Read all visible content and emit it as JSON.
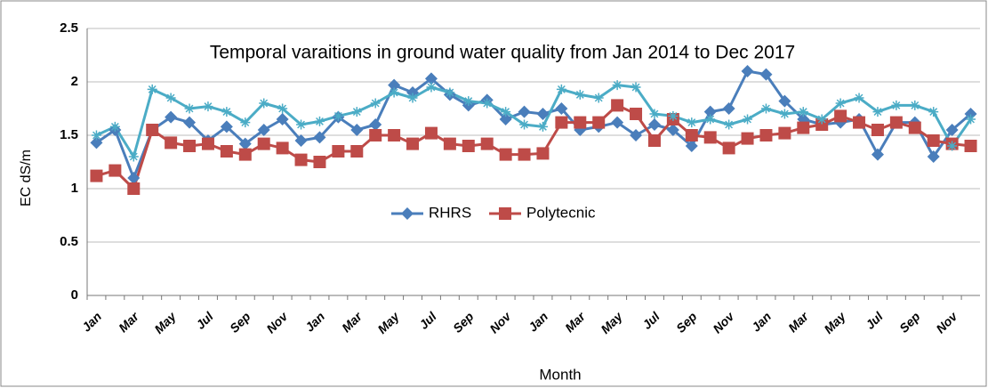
{
  "chart_data": {
    "type": "line",
    "title": "Temporal varaitions in ground water quality from Jan 2014 to Dec 2017",
    "x_label": "Month",
    "y_label": "EC dS/m",
    "categories": [
      "Jan",
      null,
      "Mar",
      null,
      "May",
      null,
      "Jul",
      null,
      "Sep",
      null,
      "Nov",
      null,
      "Jan",
      null,
      "Mar",
      null,
      "May",
      null,
      "Jul",
      null,
      "Sep",
      null,
      "Nov",
      null,
      "Jan",
      null,
      "Mar",
      null,
      "May",
      null,
      "Jul",
      null,
      "Sep",
      null,
      "Nov",
      null,
      "Jan",
      null,
      "Mar",
      null,
      "May",
      null,
      "Jul",
      null,
      "Sep",
      null,
      "Nov",
      null
    ],
    "series": [
      {
        "name": "RHRS",
        "color": "#4a7ebb",
        "marker": "diamond",
        "values": [
          1.43,
          1.55,
          1.1,
          1.55,
          1.67,
          1.62,
          1.45,
          1.58,
          1.42,
          1.55,
          1.65,
          1.45,
          1.48,
          1.67,
          1.55,
          1.6,
          1.97,
          1.9,
          2.03,
          1.88,
          1.78,
          1.83,
          1.65,
          1.72,
          1.7,
          1.75,
          1.55,
          1.58,
          1.62,
          1.5,
          1.6,
          1.55,
          1.4,
          1.72,
          1.75,
          2.1,
          2.07,
          1.82,
          1.65,
          1.6,
          1.62,
          1.65,
          1.32,
          1.62,
          1.62,
          1.3,
          1.55,
          1.7
        ]
      },
      {
        "name": "Polytecnic",
        "color": "#be4b48",
        "marker": "square",
        "values": [
          1.12,
          1.17,
          1.0,
          1.55,
          1.43,
          1.4,
          1.42,
          1.35,
          1.32,
          1.42,
          1.38,
          1.27,
          1.25,
          1.35,
          1.35,
          1.5,
          1.5,
          1.42,
          1.52,
          1.42,
          1.4,
          1.42,
          1.32,
          1.32,
          1.33,
          1.62,
          1.62,
          1.62,
          1.78,
          1.7,
          1.45,
          1.65,
          1.5,
          1.48,
          1.38,
          1.47,
          1.5,
          1.52,
          1.57,
          1.6,
          1.68,
          1.62,
          1.55,
          1.62,
          1.57,
          1.45,
          1.42,
          1.4
        ]
      },
      {
        "color": "#4bacc6",
        "marker": "star",
        "values": [
          1.5,
          1.58,
          1.3,
          1.93,
          1.85,
          1.75,
          1.77,
          1.72,
          1.62,
          1.8,
          1.75,
          1.6,
          1.63,
          1.68,
          1.72,
          1.8,
          1.9,
          1.85,
          1.95,
          1.9,
          1.82,
          1.8,
          1.72,
          1.6,
          1.58,
          1.93,
          1.88,
          1.85,
          1.97,
          1.95,
          1.7,
          1.68,
          1.62,
          1.65,
          1.6,
          1.65,
          1.75,
          1.7,
          1.72,
          1.65,
          1.8,
          1.85,
          1.72,
          1.78,
          1.78,
          1.72,
          1.4,
          1.65
        ]
      }
    ],
    "ylim": [
      0,
      2.5
    ],
    "yticks": [
      0,
      0.5,
      1,
      1.5,
      2,
      2.5
    ],
    "grid": true,
    "legend": "center"
  }
}
